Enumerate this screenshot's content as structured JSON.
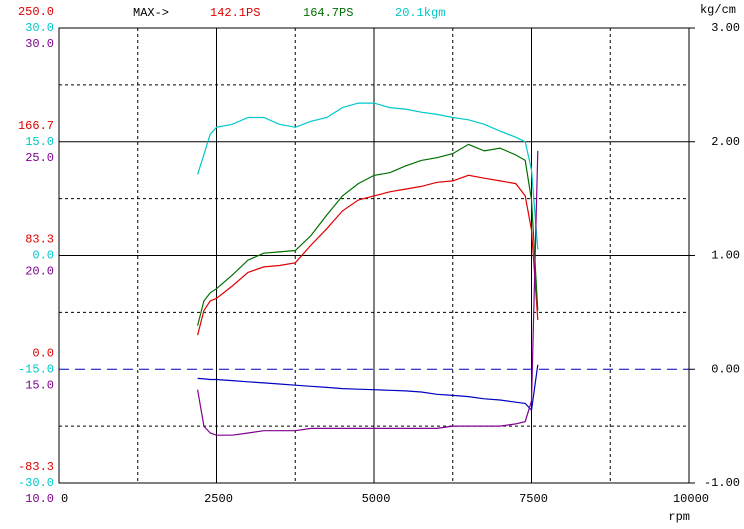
{
  "chart_data": {
    "type": "line",
    "max_label": "MAX->",
    "xlabel": "rpm",
    "y2label": "kg/cm",
    "x": [
      2200,
      2300,
      2400,
      2500,
      2750,
      3000,
      3250,
      3500,
      3750,
      4000,
      4250,
      4500,
      4750,
      5000,
      5250,
      5500,
      5750,
      6000,
      6250,
      6500,
      6750,
      7000,
      7250,
      7400,
      7500,
      7600
    ],
    "xlim": [
      0,
      10000
    ],
    "xticks": [
      0,
      2500,
      5000,
      7500,
      10000
    ],
    "y2lim": [
      -1,
      3
    ],
    "y2ticks": [
      {
        "value": 3,
        "label": "3.00"
      },
      {
        "value": 2,
        "label": "2.00"
      },
      {
        "value": 1,
        "label": "1.00"
      },
      {
        "value": 0,
        "label": "0.00"
      },
      {
        "value": -1,
        "label": "-1.00"
      }
    ],
    "left_axes": [
      {
        "color": "#e00000",
        "lim": [
          -83.3,
          250
        ],
        "ticks": [
          {
            "value": 250,
            "label": "250.0"
          },
          166.7,
          83.3,
          {
            "value": 0,
            "label": "0.0"
          },
          -83.3
        ]
      },
      {
        "color": "#00c8c8",
        "lim": [
          -30,
          30
        ],
        "ticks": [
          {
            "value": 30,
            "label": "30.0"
          },
          {
            "value": 15,
            "label": "15.0"
          },
          {
            "value": 0,
            "label": "0.0"
          },
          {
            "value": -15,
            "label": "-15.0"
          },
          {
            "value": -30,
            "label": "-30.0"
          }
        ]
      },
      {
        "color": "#800090",
        "lim": [
          10,
          30
        ],
        "ticks": [
          {
            "value": 30,
            "label": "30.0"
          },
          {
            "value": 25,
            "label": "25.0"
          },
          {
            "value": 20,
            "label": "20.0"
          },
          {
            "value": 15,
            "label": "15.0"
          },
          {
            "value": 10,
            "label": "10.0"
          }
        ]
      }
    ],
    "series": [
      {
        "name": "142.1PS",
        "color": "#e00000",
        "axis": 0,
        "values": [
          25,
          43,
          50,
          52,
          61,
          71,
          75,
          76,
          78,
          91,
          103,
          116,
          124,
          127,
          130,
          132,
          134,
          137,
          138,
          142.1,
          140,
          138,
          136,
          127,
          102,
          36
        ]
      },
      {
        "name": "164.7PS",
        "color": "#007000",
        "axis": 0,
        "values": [
          32,
          50,
          56,
          59,
          69,
          80,
          85,
          86,
          87,
          98,
          113,
          127,
          136,
          142,
          144,
          149,
          153,
          155,
          158,
          164.7,
          160,
          162,
          157,
          153,
          124,
          43
        ]
      },
      {
        "name": "20.1kgm",
        "color": "#00c8c8",
        "axis": 1,
        "values": [
          10.7,
          13.3,
          16.0,
          16.9,
          17.3,
          18.2,
          18.2,
          17.3,
          16.9,
          17.7,
          18.2,
          19.5,
          20.1,
          20.1,
          19.5,
          19.3,
          18.9,
          18.6,
          18.2,
          17.9,
          17.3,
          16.4,
          15.6,
          15.0,
          11.3,
          0.8
        ]
      },
      {
        "color": "#0000c0",
        "axis": "y2",
        "values": [
          -0.08,
          -0.085,
          -0.09,
          -0.09,
          -0.1,
          -0.11,
          -0.12,
          -0.13,
          -0.14,
          -0.15,
          -0.16,
          -0.17,
          -0.175,
          -0.18,
          -0.185,
          -0.19,
          -0.2,
          -0.22,
          -0.23,
          -0.24,
          -0.26,
          -0.27,
          -0.29,
          -0.3,
          -0.36,
          0.04
        ]
      },
      {
        "color": "#800090",
        "axis": 2,
        "values": [
          14.1,
          12.5,
          12.2,
          12.1,
          12.1,
          12.2,
          12.3,
          12.3,
          12.3,
          12.4,
          12.4,
          12.4,
          12.4,
          12.4,
          12.4,
          12.4,
          12.4,
          12.4,
          12.5,
          12.5,
          12.5,
          12.5,
          12.6,
          12.7,
          13.6,
          24.6
        ]
      }
    ]
  }
}
